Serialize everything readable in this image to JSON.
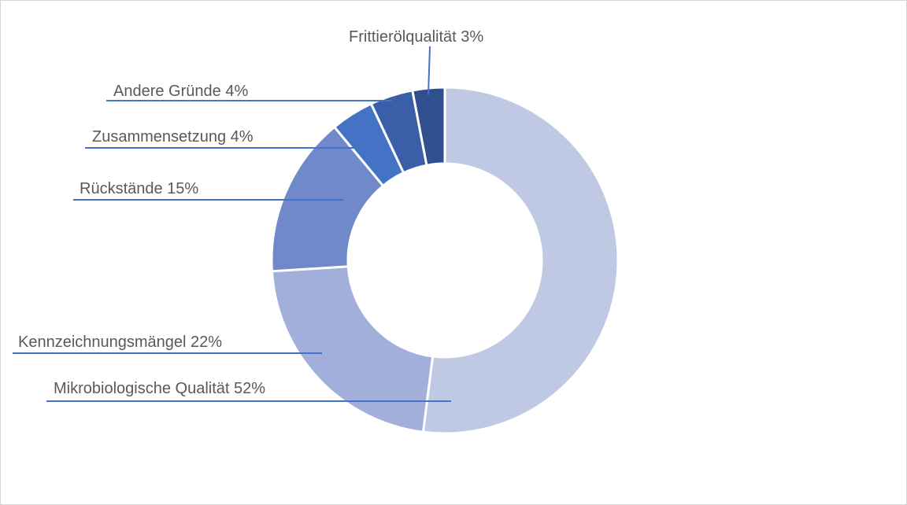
{
  "chart_data": {
    "type": "pie",
    "variant": "doughnut",
    "title": "",
    "slices": [
      {
        "label": "Mikrobiologische Qualität",
        "value": 52,
        "text": "Mikrobiologische Qualität 52%",
        "color": "#c0c9e4"
      },
      {
        "label": "Kennzeichnungsmängel",
        "value": 22,
        "text": "Kennzeichnungsmängel 22%",
        "color": "#a1afda"
      },
      {
        "label": "Rückstände",
        "value": 15,
        "text": "Rückstände 15%",
        "color": "#6f89ca"
      },
      {
        "label": "Zusammensetzung",
        "value": 4,
        "text": "Zusammensetzung 4%",
        "color": "#4472c4"
      },
      {
        "label": "Andere Gründe",
        "value": 4,
        "text": "Andere Gründe 4%",
        "color": "#3a5ea8"
      },
      {
        "label": "Frittierölqualität",
        "value": 3,
        "text": "Frittierölqualität 3%",
        "color": "#2f4f8e"
      }
    ],
    "start_angle": "12 o'clock",
    "direction": "clockwise",
    "leader_line_color": "#4472c4",
    "legend": "none"
  }
}
